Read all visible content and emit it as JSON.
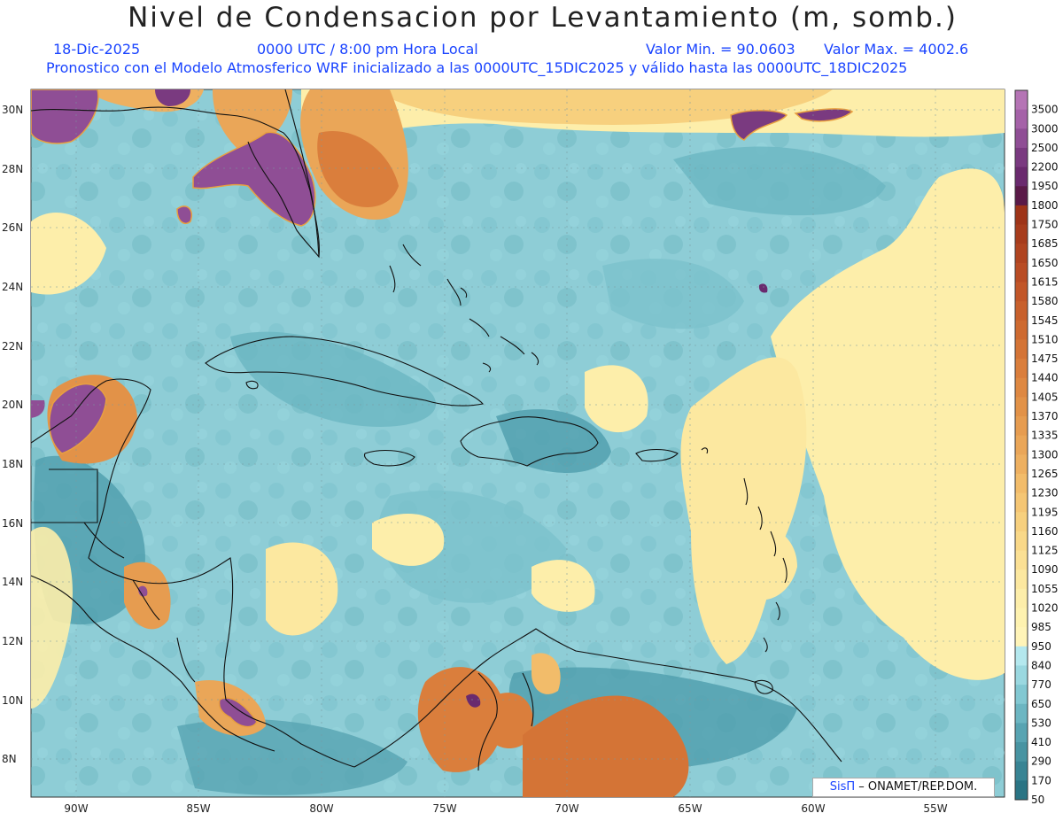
{
  "header": {
    "title": "Nivel de Condensacion por Levantamiento (m, somb.)",
    "date": "18-Dic-2025",
    "time": "0000 UTC / 8:00 pm Hora Local",
    "min": "Valor Min. = 90.0603",
    "max": "Valor Max. = 4002.6",
    "subtitle": "Pronostico con el Modelo Atmosferico WRF inicializado a las 0000UTC_15DIC2025 y válido hasta las  0000UTC_18DIC2025"
  },
  "map": {
    "lat_labels": [
      "30N",
      "28N",
      "26N",
      "24N",
      "22N",
      "20N",
      "18N",
      "16N",
      "14N",
      "12N",
      "10N",
      "8N"
    ],
    "lon_labels": [
      "90W",
      "85W",
      "80W",
      "75W",
      "70W",
      "65W",
      "60W",
      "55W"
    ]
  },
  "colorbar": {
    "levels": [
      "3500",
      "3000",
      "2500",
      "2200",
      "1950",
      "1800",
      "1750",
      "1685",
      "1650",
      "1615",
      "1580",
      "1545",
      "1510",
      "1475",
      "1440",
      "1405",
      "1370",
      "1335",
      "1300",
      "1265",
      "1230",
      "1195",
      "1160",
      "1125",
      "1090",
      "1055",
      "1020",
      "985",
      "950",
      "840",
      "770",
      "650",
      "530",
      "410",
      "290",
      "170",
      "50"
    ],
    "colors": [
      "#b574b5",
      "#a562a8",
      "#8f4e95",
      "#7a3a80",
      "#6a2a6e",
      "#5a1a48",
      "#9e3418",
      "#a73c1c",
      "#b04420",
      "#b94c24",
      "#c25628",
      "#c8602c",
      "#ce6a30",
      "#d47436",
      "#da7e3c",
      "#de8842",
      "#e29248",
      "#e69c50",
      "#eaa658",
      "#eeb060",
      "#f2bc6a",
      "#f5c674",
      "#f7d07e",
      "#f9d888",
      "#fbe094",
      "#fce8a0",
      "#fdeeaa",
      "#fef2b0",
      "#fff4b8",
      "#b4e8ee",
      "#9ad8e0",
      "#82c8d2",
      "#6cb6c2",
      "#58a4b2",
      "#4894a2",
      "#388494",
      "#2a7484"
    ]
  },
  "credit": {
    "sis": "SisΠ",
    "text": "– ONAMET/REP.DOM."
  }
}
